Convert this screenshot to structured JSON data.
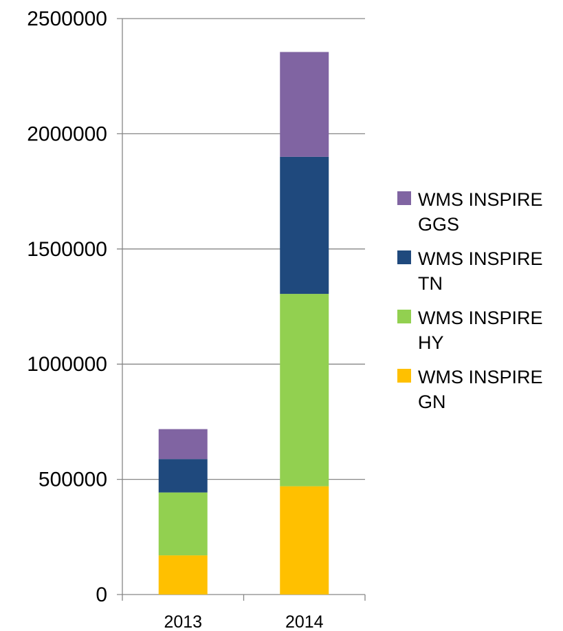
{
  "chart_data": {
    "type": "bar",
    "stacked": true,
    "categories": [
      "2013",
      "2014"
    ],
    "series": [
      {
        "name": "WMS INSPIRE GN",
        "color": "#FFC000",
        "values": [
          170000,
          470000
        ]
      },
      {
        "name": "WMS INSPIRE HY",
        "color": "#92D050",
        "values": [
          273000,
          835000
        ]
      },
      {
        "name": "WMS INSPIRE TN",
        "color": "#1F497D",
        "values": [
          145000,
          595000
        ]
      },
      {
        "name": "WMS INSPIRE GGS",
        "color": "#8064A2",
        "values": [
          130000,
          455000
        ]
      }
    ],
    "yticks": [
      "0",
      "500000",
      "1000000",
      "1500000",
      "2000000",
      "2500000"
    ],
    "ylim": [
      0,
      2500000
    ],
    "grid": true,
    "legend_position": "right",
    "title": "",
    "xlabel": "",
    "ylabel": ""
  }
}
